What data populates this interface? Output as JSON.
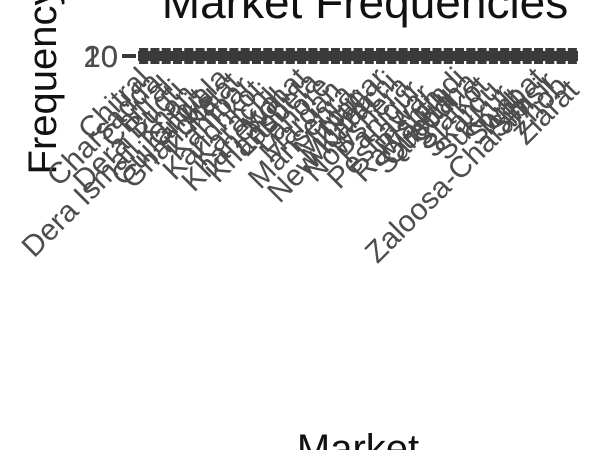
{
  "chart_data": {
    "type": "bar",
    "title": "Market Frequencies",
    "xlabel": "Market",
    "ylabel": "Frequency",
    "y_tick_labels": [
      "0",
      "10",
      "20"
    ],
    "ylim": [
      0,
      20
    ],
    "grid": false,
    "legend": "none",
    "bar_color": "#3a3a3a",
    "categories": [
      "Chitral",
      "Charsadda",
      "Chitral",
      "Dera Bugti",
      "Dera Ismail Khan",
      "Gilgit",
      "Ghanche",
      "Gujranwala",
      "Kalat",
      "Kambar",
      "Kandhkot",
      "Karachi",
      "Khanewal",
      "Khanpur",
      "Kohat",
      "Lasbela",
      "Lahore",
      "Mardan",
      "Mansehra",
      "Mirpur",
      "Multan",
      "Nagar",
      "New Karachi",
      "Nowshera",
      "Panjgur",
      "Peshawar",
      "Pishin",
      "Quetta",
      "Rawalpindi",
      "Sargodha",
      "Sialkot",
      "Skardu",
      "Sukkur",
      "Swat",
      "Sibi",
      "Turbat",
      "Zaloosa-Charamsir",
      "Zhob",
      "Ziarat"
    ],
    "values": [
      20,
      20,
      20,
      20,
      20,
      20,
      20,
      20,
      20,
      20,
      20,
      20,
      20,
      20,
      20,
      20,
      20,
      20,
      20,
      20,
      20,
      20,
      20,
      20,
      20,
      20,
      20,
      20,
      20,
      20,
      20,
      20,
      20,
      20,
      20,
      20,
      20,
      20,
      20
    ]
  }
}
